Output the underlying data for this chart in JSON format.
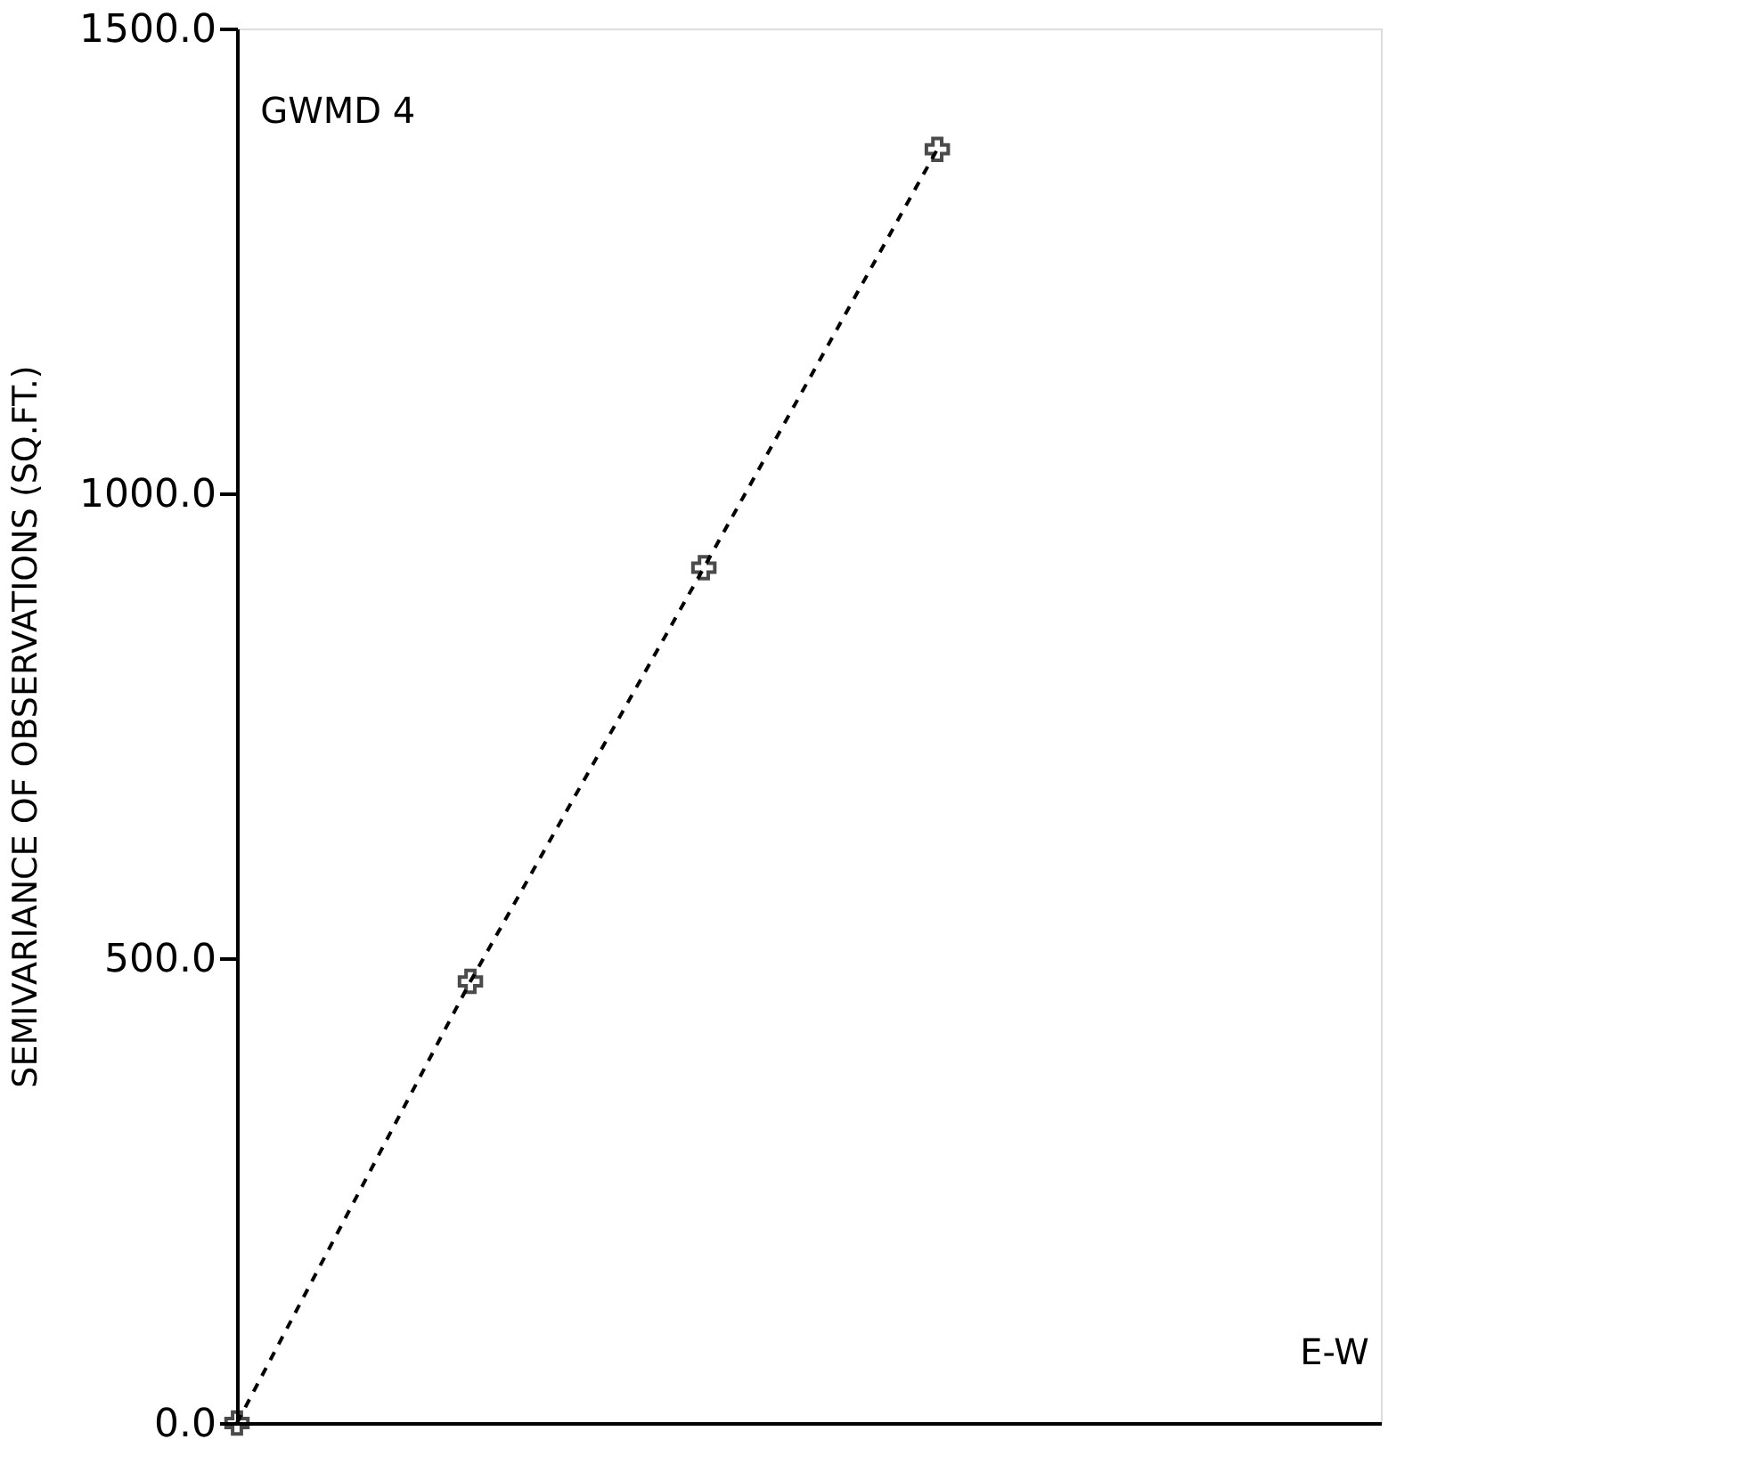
{
  "chart_data": {
    "type": "line",
    "ylabel": "SEMIVARIANCE OF OBSERVATIONS (SQ.FT.)",
    "categories": [
      null,
      null,
      null,
      null
    ],
    "series": [
      {
        "color": "#000000",
        "values": [
          0,
          475,
          920,
          1370
        ]
      }
    ],
    "ylim": [
      0,
      1500
    ],
    "yticks": [
      {
        "value": 0,
        "label": "0.0"
      },
      {
        "value": 500,
        "label": "500.0"
      },
      {
        "value": 1000,
        "label": "1000.0"
      },
      {
        "value": 1500,
        "label": "1500.0"
      }
    ],
    "tick_labels": "y",
    "grid": false,
    "marker": "cross",
    "line_style": "dashed",
    "annotations": [
      "GWMD 4",
      "E-W"
    ]
  }
}
